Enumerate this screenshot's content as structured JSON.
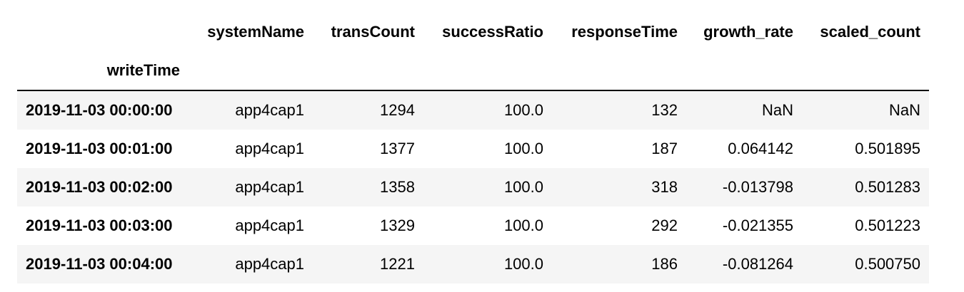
{
  "table": {
    "columns": [
      "systemName",
      "transCount",
      "successRatio",
      "responseTime",
      "growth_rate",
      "scaled_count"
    ],
    "index_name": "writeTime",
    "rows": [
      {
        "index": "2019-11-03 00:00:00",
        "cells": [
          "app4cap1",
          "1294",
          "100.0",
          "132",
          "NaN",
          "NaN"
        ]
      },
      {
        "index": "2019-11-03 00:01:00",
        "cells": [
          "app4cap1",
          "1377",
          "100.0",
          "187",
          "0.064142",
          "0.501895"
        ]
      },
      {
        "index": "2019-11-03 00:02:00",
        "cells": [
          "app4cap1",
          "1358",
          "100.0",
          "318",
          "-0.013798",
          "0.501283"
        ]
      },
      {
        "index": "2019-11-03 00:03:00",
        "cells": [
          "app4cap1",
          "1329",
          "100.0",
          "292",
          "-0.021355",
          "0.501223"
        ]
      },
      {
        "index": "2019-11-03 00:04:00",
        "cells": [
          "app4cap1",
          "1221",
          "100.0",
          "186",
          "-0.081264",
          "0.500750"
        ]
      }
    ]
  }
}
